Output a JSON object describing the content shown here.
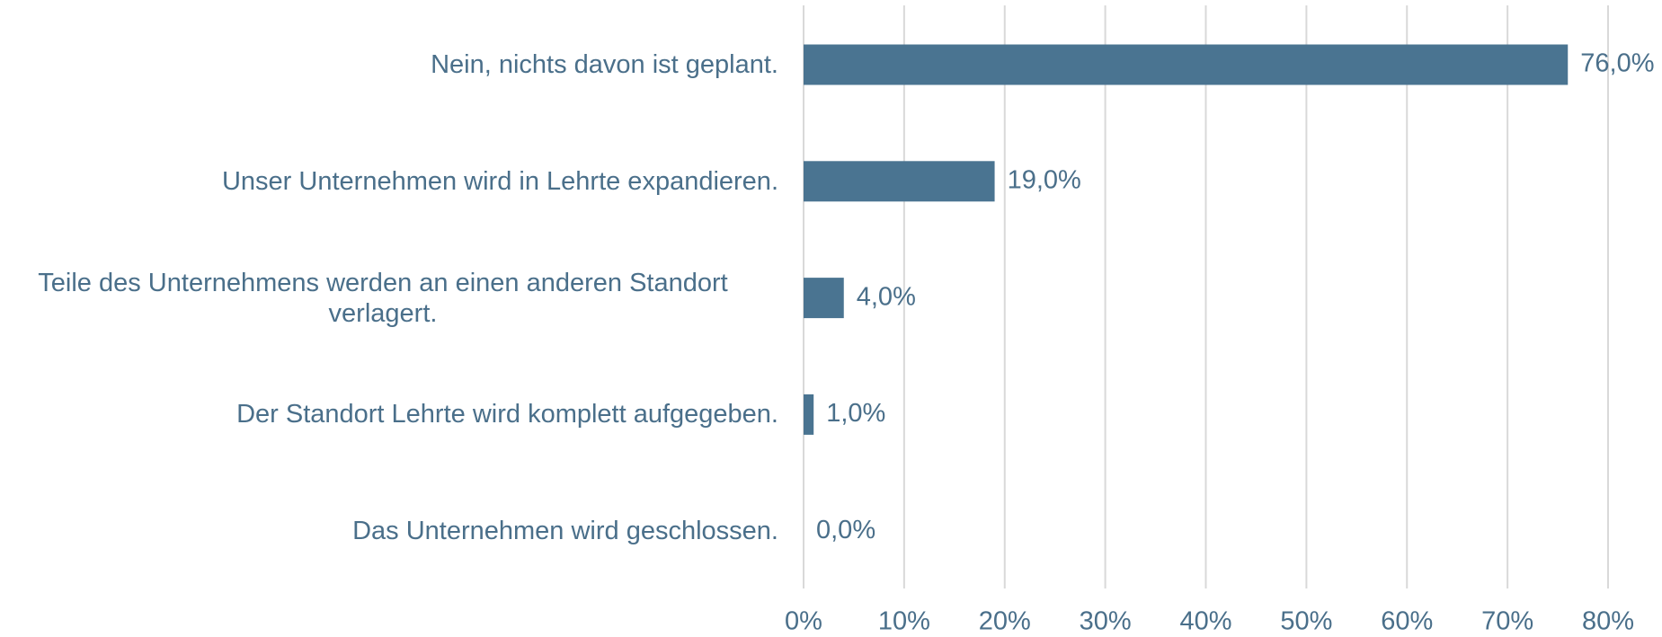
{
  "chart_data": {
    "type": "bar",
    "orientation": "horizontal",
    "categories": [
      "Nein, nichts davon ist geplant.",
      "Unser Unternehmen wird in Lehrte expandieren.",
      "Teile des Unternehmens werden an einen anderen Standort verlagert.",
      "Der Standort Lehrte wird komplett aufgegeben.",
      "Das Unternehmen wird geschlossen."
    ],
    "values": [
      76,
      19,
      4,
      1,
      0
    ],
    "value_labels": [
      "76,0%",
      "19,0%",
      "4,0%",
      "1,0%",
      "0,0%"
    ],
    "color": "#4a7491",
    "xlim": [
      0,
      80
    ],
    "xticks": [
      {
        "value": 0,
        "label": "0%"
      },
      {
        "value": 10,
        "label": "10%"
      },
      {
        "value": 20,
        "label": "20%"
      },
      {
        "value": 30,
        "label": "30%"
      },
      {
        "value": 40,
        "label": "40%"
      },
      {
        "value": 50,
        "label": "50%"
      },
      {
        "value": 60,
        "label": "60%"
      },
      {
        "value": 70,
        "label": "70%"
      },
      {
        "value": 80,
        "label": "80%"
      }
    ],
    "grid": true
  }
}
